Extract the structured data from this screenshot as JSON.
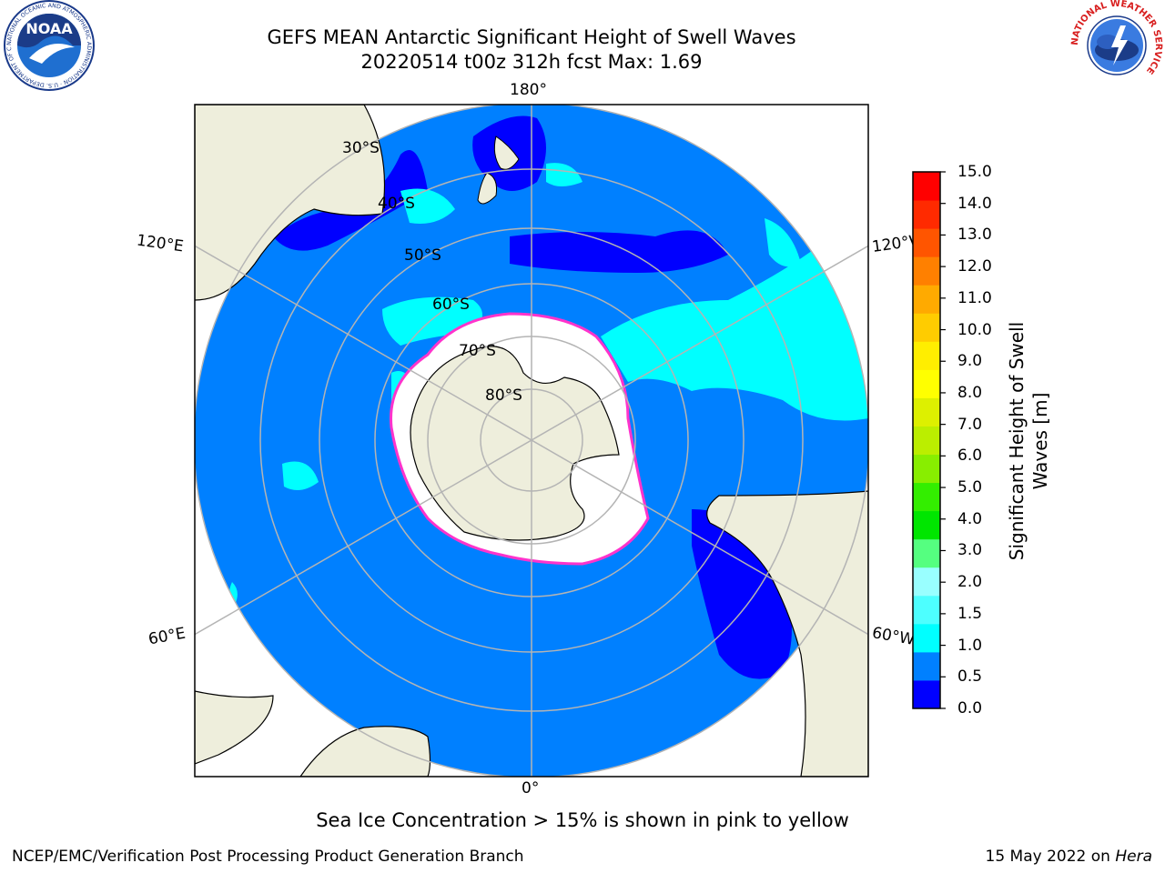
{
  "title": {
    "line1": "GEFS MEAN Antarctic Significant Height of Swell Waves",
    "line2": "20220514 t00z 312h fcst   Max: 1.69"
  },
  "logos": {
    "noaa_text": "NOAA",
    "noaa_ring": "NATIONAL OCEANIC AND ATMOSPHERIC ADMINISTRATION · U.S. DEPARTMENT OF COMMERCE",
    "nws_ring": "NATIONAL WEATHER SERVICE"
  },
  "map": {
    "projection": "south-polar-stereographic",
    "lon_labels": {
      "top": "180°",
      "bottom": "0°",
      "upper_left": "120°E",
      "lower_left": "60°E",
      "upper_right": "120°W",
      "lower_right": "60°W"
    },
    "lat_labels": [
      "30°S",
      "40°S",
      "50°S",
      "60°S",
      "70°S",
      "80°S"
    ],
    "colors": {
      "ocean_low": "#0080ff",
      "ocean_very_low": "#0000ff",
      "swell_1_15": "#00ffff",
      "land": "#eeeedc",
      "ice": "#ffffff",
      "ice_edge": "#ff33cc",
      "grid": "#b4b4b4"
    }
  },
  "colorbar": {
    "title": "Significant Height of Swell Waves [m]",
    "ticks": [
      "15.0",
      "14.0",
      "13.0",
      "12.0",
      "11.0",
      "10.0",
      "9.0",
      "8.0",
      "7.0",
      "6.0",
      "5.0",
      "4.0",
      "3.0",
      "2.0",
      "1.5",
      "1.0",
      "0.5",
      "0.0"
    ],
    "colors_bottom_to_top": [
      "#0000ff",
      "#0080ff",
      "#00ffff",
      "#4dffff",
      "#99ffff",
      "#55ff80",
      "#00e600",
      "#33ee00",
      "#88ee00",
      "#bbee00",
      "#ddf000",
      "#ffff00",
      "#ffee00",
      "#ffcc00",
      "#ffaa00",
      "#ff8000",
      "#ff5500",
      "#ff2a00",
      "#ff0000"
    ]
  },
  "footer": {
    "note": "Sea Ice Concentration > 15% is shown in pink to yellow",
    "credit": "NCEP/EMC/Verification Post Processing Product Generation Branch",
    "date_prefix": "15 May 2022 on ",
    "host": "Hera"
  }
}
